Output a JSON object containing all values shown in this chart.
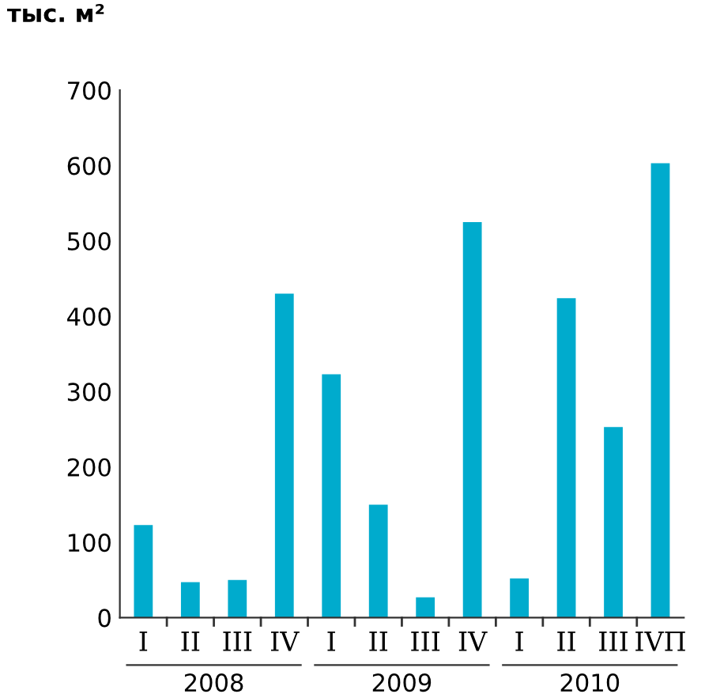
{
  "chart_data": {
    "type": "bar",
    "ylabel": "тыс. м²",
    "categories": [
      "I",
      "II",
      "III",
      "IV",
      "I",
      "II",
      "III",
      "IV",
      "I",
      "II",
      "III",
      "IVП"
    ],
    "values": [
      123,
      47,
      50,
      430,
      323,
      150,
      27,
      525,
      52,
      424,
      253,
      603
    ],
    "color": "#00abcd",
    "ylim": [
      0,
      700
    ],
    "yticks": [
      0,
      100,
      200,
      300,
      400,
      500,
      600,
      700
    ],
    "grid": false,
    "annotations": [
      "2008",
      "2009",
      "2010"
    ]
  }
}
